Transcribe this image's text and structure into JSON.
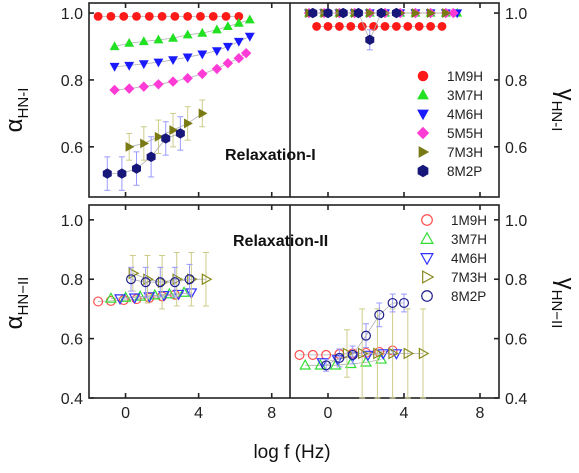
{
  "xlabel": "log f (Hz)",
  "x_ticks": [
    0,
    4,
    8
  ],
  "xlim": [
    -2,
    9
  ],
  "top_ylim": [
    0.45,
    1.03
  ],
  "top_yticks": [
    0.6,
    0.8,
    1.0
  ],
  "bottom_ylim": [
    0.4,
    1.05
  ],
  "bottom_yticks": [
    0.4,
    0.6,
    0.8,
    1.0
  ],
  "tick_labels": {
    "top_left": [
      "1.0",
      "0.8",
      "0.6"
    ],
    "top_right": [
      "1.0",
      "0.8",
      "0.6"
    ],
    "bottom_left": [
      "1.0",
      "0.8",
      "0.6",
      "0.4"
    ],
    "bottom_right": [
      "1.0",
      "0.8",
      "0.6",
      "0.4"
    ],
    "x": [
      "0",
      "4",
      "8"
    ]
  },
  "ylabels": {
    "top_left_main": "α",
    "top_left_sub": "HN-I",
    "top_right_main": "γ",
    "top_right_sub": "HN-I",
    "bottom_left_main": "α",
    "bottom_left_sub": "HN−II",
    "bottom_right_main": "γ",
    "bottom_right_sub": "HN−II"
  },
  "annotations": {
    "top": "Relaxation-I",
    "bottom": "Relaxation-II"
  },
  "colors": {
    "1M9H": "#ff1a1a",
    "3M7H": "#22e022",
    "4M6H": "#1a1aff",
    "5M5H": "#ff3bd6",
    "7M3H": "#7a7a14",
    "8M2P": "#17177a",
    "bottom_1M9H": "#ff4d4d",
    "bottom_3M7H": "#33dd33",
    "bottom_4M6H": "#3333ff",
    "bottom_7M3H": "#8a8a20",
    "bottom_8M2P": "#1f1f8a",
    "errorbar": "#9a9aff",
    "errorbar_olive": "#cccc88"
  },
  "chart_data": [
    {
      "type": "scatter",
      "panel": "top-left",
      "ylabel": "αHN-I",
      "xlim": [
        -2,
        9
      ],
      "ylim": [
        0.45,
        1.03
      ],
      "series": [
        {
          "name": "1M9H",
          "marker": "circle-filled",
          "x": [
            -1.5,
            -0.8,
            -0.1,
            0.6,
            1.3,
            2,
            2.7,
            3.4,
            4.1,
            4.8,
            5.5,
            6.2
          ],
          "y": [
            0.99,
            0.99,
            0.99,
            0.99,
            0.99,
            0.99,
            0.99,
            0.99,
            0.99,
            0.99,
            0.99,
            0.99
          ]
        },
        {
          "name": "3M7H",
          "marker": "triangle-up-filled",
          "x": [
            -0.6,
            0.2,
            1,
            1.8,
            2.6,
            3.4,
            4.2,
            5,
            5.6,
            6.2,
            6.8
          ],
          "y": [
            0.9,
            0.91,
            0.915,
            0.92,
            0.925,
            0.935,
            0.94,
            0.95,
            0.96,
            0.97,
            0.98
          ]
        },
        {
          "name": "4M6H",
          "marker": "triangle-down-filled",
          "x": [
            -0.6,
            0.2,
            1,
            1.8,
            2.6,
            3.4,
            4.2,
            5,
            5.6,
            6.2,
            6.8
          ],
          "y": [
            0.84,
            0.843,
            0.848,
            0.853,
            0.86,
            0.868,
            0.877,
            0.887,
            0.9,
            0.915,
            0.93
          ]
        },
        {
          "name": "5M5H",
          "marker": "diamond-filled",
          "x": [
            -0.6,
            0.2,
            1,
            1.8,
            2.6,
            3.4,
            4.2,
            5,
            5.6,
            6.2,
            6.6
          ],
          "y": [
            0.77,
            0.774,
            0.78,
            0.787,
            0.795,
            0.805,
            0.818,
            0.833,
            0.85,
            0.865,
            0.88
          ]
        },
        {
          "name": "7M3H",
          "marker": "triangle-right-filled",
          "x": [
            0.2,
            1,
            1.8,
            2.6,
            3.4,
            4.2
          ],
          "y": [
            0.6,
            0.61,
            0.63,
            0.65,
            0.67,
            0.7
          ],
          "err": [
            0.04,
            0.05,
            0.05,
            0.05,
            0.05,
            0.04
          ]
        },
        {
          "name": "8M2P",
          "marker": "hexagon-filled",
          "x": [
            -1,
            -0.2,
            0.6,
            1.4,
            2.2,
            3
          ],
          "y": [
            0.52,
            0.52,
            0.535,
            0.57,
            0.625,
            0.64
          ],
          "err": [
            0.05,
            0.05,
            0.05,
            0.06,
            0.05,
            0.05
          ]
        }
      ]
    },
    {
      "type": "scatter",
      "panel": "top-right",
      "ylabel": "γHN-I",
      "xlim": [
        -2,
        9
      ],
      "ylim": [
        0.45,
        1.03
      ],
      "series": [
        {
          "name": "1M9H",
          "marker": "circle-filled",
          "x": [
            -0.6,
            0,
            0.6,
            1.2,
            1.8,
            2.4,
            3,
            3.6,
            4.2,
            4.8,
            5.4,
            6
          ],
          "y": [
            0.96,
            0.96,
            0.96,
            0.96,
            0.96,
            0.96,
            0.96,
            0.96,
            0.96,
            0.96,
            0.96,
            0.96
          ]
        },
        {
          "name": "3M7H",
          "marker": "triangle-up-filled",
          "x": [
            -1,
            -0.2,
            0.6,
            1.4,
            2.2,
            3,
            3.8,
            4.6,
            5.4,
            6.2,
            6.8
          ],
          "y": [
            1,
            1,
            1,
            1,
            1,
            1,
            1,
            1,
            1,
            1,
            1
          ]
        },
        {
          "name": "4M6H",
          "marker": "triangle-down-filled",
          "x": [
            -1,
            -0.2,
            0.6,
            1.4,
            2.2,
            3,
            3.8,
            4.6,
            5.4,
            6.2,
            6.8
          ],
          "y": [
            1,
            1,
            1,
            1,
            1,
            1,
            1,
            1,
            1,
            1,
            1
          ]
        },
        {
          "name": "5M5H",
          "marker": "diamond-filled",
          "x": [
            -1,
            -0.2,
            0.6,
            1.4,
            2.2,
            3,
            3.8,
            4.6,
            5.4,
            6.2,
            6.6
          ],
          "y": [
            1,
            1,
            1,
            1,
            1,
            1,
            1,
            1,
            1,
            1,
            1
          ]
        },
        {
          "name": "7M3H",
          "marker": "triangle-right-filled",
          "x": [
            -1,
            -0.2,
            0.6,
            1.4,
            2.2,
            3,
            3.8,
            4.6,
            5.4,
            6.2
          ],
          "y": [
            1,
            1,
            1,
            1,
            1,
            1,
            1,
            1,
            1,
            1
          ]
        },
        {
          "name": "8M2P",
          "marker": "hexagon-filled",
          "x": [
            -0.8,
            0,
            0.8,
            1.6,
            2.2,
            2.8,
            3.6
          ],
          "y": [
            1,
            1,
            1,
            1,
            0.92,
            1,
            1
          ],
          "err": [
            0.01,
            0.01,
            0.01,
            0.01,
            0.03,
            0.01,
            0.01
          ]
        }
      ],
      "legend": {
        "position": "right",
        "entries": [
          "1M9H",
          "3M7H",
          "4M6H",
          "5M5H",
          "7M3H",
          "8M2P"
        ]
      }
    },
    {
      "type": "scatter",
      "panel": "bottom-left",
      "ylabel": "αHN−II",
      "xlim": [
        -2,
        9
      ],
      "ylim": [
        0.4,
        1.05
      ],
      "series": [
        {
          "name": "1M9H",
          "marker": "circle-open",
          "x": [
            -1.5,
            -0.8,
            -0.1,
            0.6,
            1.3,
            2,
            2.7
          ],
          "y": [
            0.725,
            0.727,
            0.73,
            0.733,
            0.737,
            0.742,
            0.748
          ]
        },
        {
          "name": "3M7H",
          "marker": "triangle-up-open",
          "x": [
            -0.8,
            0,
            0.8,
            1.6,
            2.4,
            3.2
          ],
          "y": [
            0.735,
            0.738,
            0.742,
            0.746,
            0.75,
            0.755
          ]
        },
        {
          "name": "4M6H",
          "marker": "triangle-down-open",
          "x": [
            -0.3,
            0.5,
            1.3,
            2.1,
            2.9,
            3.6
          ],
          "y": [
            0.735,
            0.738,
            0.742,
            0.746,
            0.75,
            0.755
          ]
        },
        {
          "name": "7M3H",
          "marker": "triangle-right-open",
          "x": [
            0.4,
            1.2,
            2,
            2.8,
            3.6,
            4.4
          ],
          "y": [
            0.82,
            0.8,
            0.79,
            0.8,
            0.8,
            0.8
          ],
          "err": [
            0.06,
            0.08,
            0.09,
            0.09,
            0.09,
            0.09
          ]
        },
        {
          "name": "8M2P",
          "marker": "circle-open",
          "x": [
            0.3,
            1.1,
            1.9,
            2.7,
            3.5
          ],
          "y": [
            0.8,
            0.79,
            0.79,
            0.79,
            0.8
          ],
          "err": [
            0.04,
            0.05,
            0.05,
            0.05,
            0.05
          ]
        }
      ]
    },
    {
      "type": "scatter",
      "panel": "bottom-right",
      "ylabel": "γHN−II",
      "xlim": [
        -2,
        9
      ],
      "ylim": [
        0.4,
        1.05
      ],
      "series": [
        {
          "name": "1M9H",
          "marker": "circle-open",
          "x": [
            -1.5,
            -0.8,
            -0.1,
            0.6,
            1.3,
            2,
            2.7,
            3.4
          ],
          "y": [
            0.545,
            0.545,
            0.545,
            0.548,
            0.55,
            0.552,
            0.555,
            0.56
          ]
        },
        {
          "name": "3M7H",
          "marker": "triangle-up-open",
          "x": [
            -1.2,
            -0.4,
            0.4,
            1.2,
            2,
            2.8
          ],
          "y": [
            0.51,
            0.51,
            0.51,
            0.515,
            0.52,
            0.53
          ]
        },
        {
          "name": "4M6H",
          "marker": "triangle-down-open",
          "x": [
            -0.3,
            0.5,
            1.3,
            2.1,
            2.9,
            3.6
          ],
          "y": [
            0.52,
            0.53,
            0.54,
            0.545,
            0.55,
            0.55
          ]
        },
        {
          "name": "7M3H",
          "marker": "triangle-right-open",
          "x": [
            1,
            1.8,
            2.6,
            3.4,
            4.2,
            5
          ],
          "y": [
            0.55,
            0.55,
            0.55,
            0.55,
            0.55,
            0.55
          ],
          "err": [
            0.08,
            0.15,
            0.15,
            0.15,
            0.15,
            0.15
          ]
        },
        {
          "name": "8M2P",
          "marker": "circle-open",
          "x": [
            -0.1,
            0.6,
            1.3,
            2,
            2.7,
            3.4,
            4
          ],
          "y": [
            0.51,
            0.535,
            0.545,
            0.61,
            0.68,
            0.72,
            0.72
          ],
          "err": [
            0.02,
            0.03,
            0.03,
            0.04,
            0.04,
            0.03,
            0.03
          ]
        }
      ],
      "legend": {
        "position": "top-right",
        "entries": [
          "1M9H",
          "3M7H",
          "4M6H",
          "7M3H",
          "8M2P"
        ]
      }
    }
  ]
}
